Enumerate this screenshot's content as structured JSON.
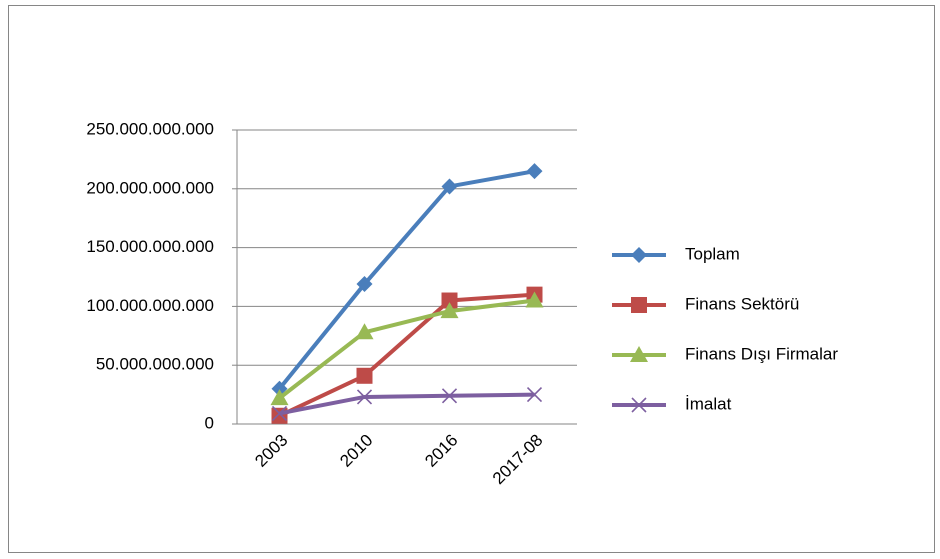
{
  "chart_data": {
    "type": "line",
    "categories": [
      "2003",
      "2010",
      "2016",
      "2017-08"
    ],
    "series": [
      {
        "name": "Toplam",
        "color": "#4a7ebb",
        "marker": "diamond",
        "values": [
          30000000000,
          119000000000,
          202000000000,
          215000000000
        ]
      },
      {
        "name": "Finans Sektörü",
        "color": "#be4b48",
        "marker": "square",
        "values": [
          7000000000,
          41000000000,
          105000000000,
          110000000000
        ]
      },
      {
        "name": "Finans Dışı Firmalar",
        "color": "#98b954",
        "marker": "triangle",
        "values": [
          22000000000,
          78000000000,
          96000000000,
          105000000000
        ]
      },
      {
        "name": "İmalat",
        "color": "#7d5fa0",
        "marker": "x",
        "values": [
          9000000000,
          23000000000,
          24000000000,
          25000000000
        ]
      }
    ],
    "ylim": [
      0,
      250000000000
    ],
    "yticks": [
      0,
      {
        "value": 50000000000,
        "label": "50.000.000.000"
      },
      {
        "value": 100000000000,
        "label": "100.000.000.000"
      },
      {
        "value": 150000000000,
        "label": "150.000.000.000"
      },
      {
        "value": 200000000000,
        "label": "200.000.000.000"
      },
      {
        "value": 250000000000,
        "label": "250.000.000.000"
      }
    ],
    "grid": true,
    "legend": "right"
  }
}
